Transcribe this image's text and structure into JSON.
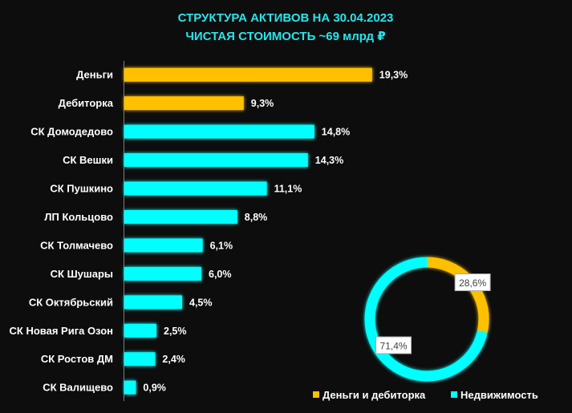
{
  "chart_data": [
    {
      "type": "bar",
      "orientation": "horizontal",
      "title": "СТРУКТУРА АКТИВОВ НА 30.04.2023",
      "subtitle": "ЧИСТАЯ СТОИМОСТЬ ~69 млрд ₽",
      "categories": [
        "Деньги",
        "Дебиторка",
        "СК Домодедово",
        "СК Вешки",
        "СК Пушкино",
        "ЛП Кольцово",
        "СК Толмачево",
        "СК Шушары",
        "СК Октябрьский",
        "СК Новая Рига Озон",
        "СК Ростов ДМ",
        "СК Валищево"
      ],
      "values": [
        19.3,
        9.3,
        14.8,
        14.3,
        11.1,
        8.8,
        6.1,
        6.0,
        4.5,
        2.5,
        2.4,
        0.9
      ],
      "value_labels": [
        "19,3%",
        "9,3%",
        "14,8%",
        "14,3%",
        "11,1%",
        "8,8%",
        "6,1%",
        "6,0%",
        "4,5%",
        "2,5%",
        "2,4%",
        "0,9%"
      ],
      "bar_groups": [
        "cash",
        "cash",
        "property",
        "property",
        "property",
        "property",
        "property",
        "property",
        "property",
        "property",
        "property",
        "property"
      ],
      "xlim": [
        0,
        20
      ],
      "grid": false
    },
    {
      "type": "pie",
      "style": "donut",
      "slices": [
        {
          "name": "Деньги и дебиторка",
          "value": 28.6,
          "label": "28,6%",
          "group": "cash"
        },
        {
          "name": "Недвижимость",
          "value": 71.4,
          "label": "71,4%",
          "group": "property"
        }
      ],
      "legend_placement": "bottom-right"
    }
  ],
  "colors": {
    "background": "#0d0d0d",
    "title": "#27e5ec",
    "cash": "#ffc000",
    "property": "#00ffff",
    "text": "#ffffff",
    "axis": "#7f7f7f"
  }
}
